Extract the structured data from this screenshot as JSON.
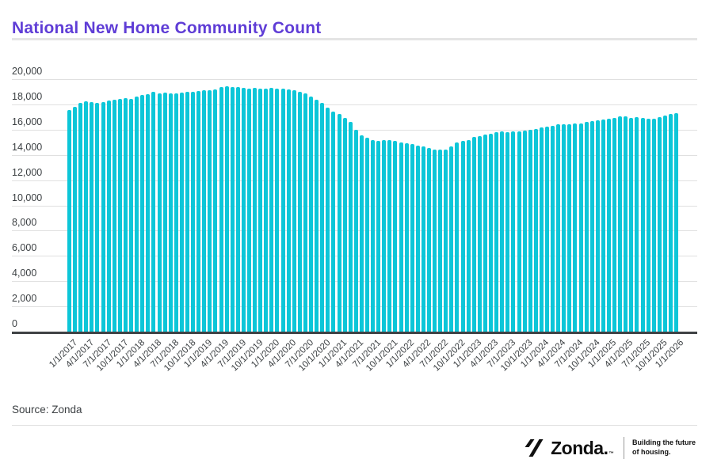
{
  "header": {
    "title": "National New Home Community Count"
  },
  "source": {
    "label": "Source: Zonda"
  },
  "footer": {
    "brand": "Zonda.",
    "trademark": "™",
    "tagline_line1": "Building the future",
    "tagline_line2": "of housing."
  },
  "colors": {
    "title": "#5f3dd6",
    "bar": "#0cc6d8",
    "axis_text": "#3c4043",
    "axis_line": "#3f4245",
    "gridline": "#e0e0e0"
  },
  "chart_data": {
    "type": "bar",
    "title": "National New Home Community Count",
    "xlabel": "",
    "ylabel": "",
    "frequency": "monthly",
    "x_start": "1/1/2017",
    "x_end": "1/1/2026",
    "ylim": [
      0,
      20000
    ],
    "grid": "horizontal",
    "legend": "none",
    "bar_color": "#0cc6d8",
    "y_tick_labels": [
      "0",
      "2,000",
      "4,000",
      "6,000",
      "8,000",
      "10,000",
      "12,000",
      "14,000",
      "16,000",
      "18,000",
      "20,000"
    ],
    "x_tick_labels": [
      "1/1/2017",
      "4/1/2017",
      "7/1/2017",
      "10/1/2017",
      "1/1/2018",
      "4/1/2018",
      "7/1/2018",
      "10/1/2018",
      "1/1/2019",
      "4/1/2019",
      "7/1/2019",
      "10/1/2019",
      "1/1/2020",
      "4/1/2020",
      "7/1/2020",
      "10/1/2020",
      "1/1/2021",
      "4/1/2021",
      "7/1/2021",
      "10/1/2021",
      "1/1/2022",
      "4/1/2022",
      "7/1/2022",
      "10/1/2022",
      "1/1/2023",
      "4/1/2023",
      "7/1/2023",
      "10/1/2023",
      "1/1/2024",
      "4/1/2024",
      "7/1/2024",
      "10/1/2024",
      "1/1/2025",
      "4/1/2025",
      "7/1/2025",
      "10/1/2025",
      "1/1/2026"
    ],
    "x_ticks_every_n_bars": 3,
    "values": [
      17550,
      17800,
      18150,
      18250,
      18200,
      18150,
      18200,
      18300,
      18400,
      18450,
      18500,
      18450,
      18650,
      18750,
      18800,
      19000,
      18900,
      18950,
      18850,
      18900,
      18950,
      19000,
      19000,
      19050,
      19100,
      19150,
      19200,
      19400,
      19450,
      19400,
      19400,
      19300,
      19250,
      19300,
      19250,
      19250,
      19300,
      19250,
      19250,
      19200,
      19150,
      19000,
      18900,
      18650,
      18400,
      18100,
      17750,
      17450,
      17250,
      16950,
      16600,
      16000,
      15550,
      15350,
      15150,
      15100,
      15150,
      15150,
      15100,
      15000,
      14900,
      14850,
      14750,
      14650,
      14550,
      14450,
      14400,
      14450,
      14700,
      15000,
      15100,
      15200,
      15400,
      15500,
      15600,
      15700,
      15800,
      15850,
      15800,
      15850,
      15850,
      15900,
      16000,
      16050,
      16150,
      16250,
      16300,
      16450,
      16400,
      16400,
      16500,
      16500,
      16600,
      16700,
      16750,
      16800,
      16850,
      16900,
      17050,
      17050,
      16950,
      17000,
      16950,
      16850,
      16850,
      17000,
      17100,
      17250,
      17300
    ]
  }
}
